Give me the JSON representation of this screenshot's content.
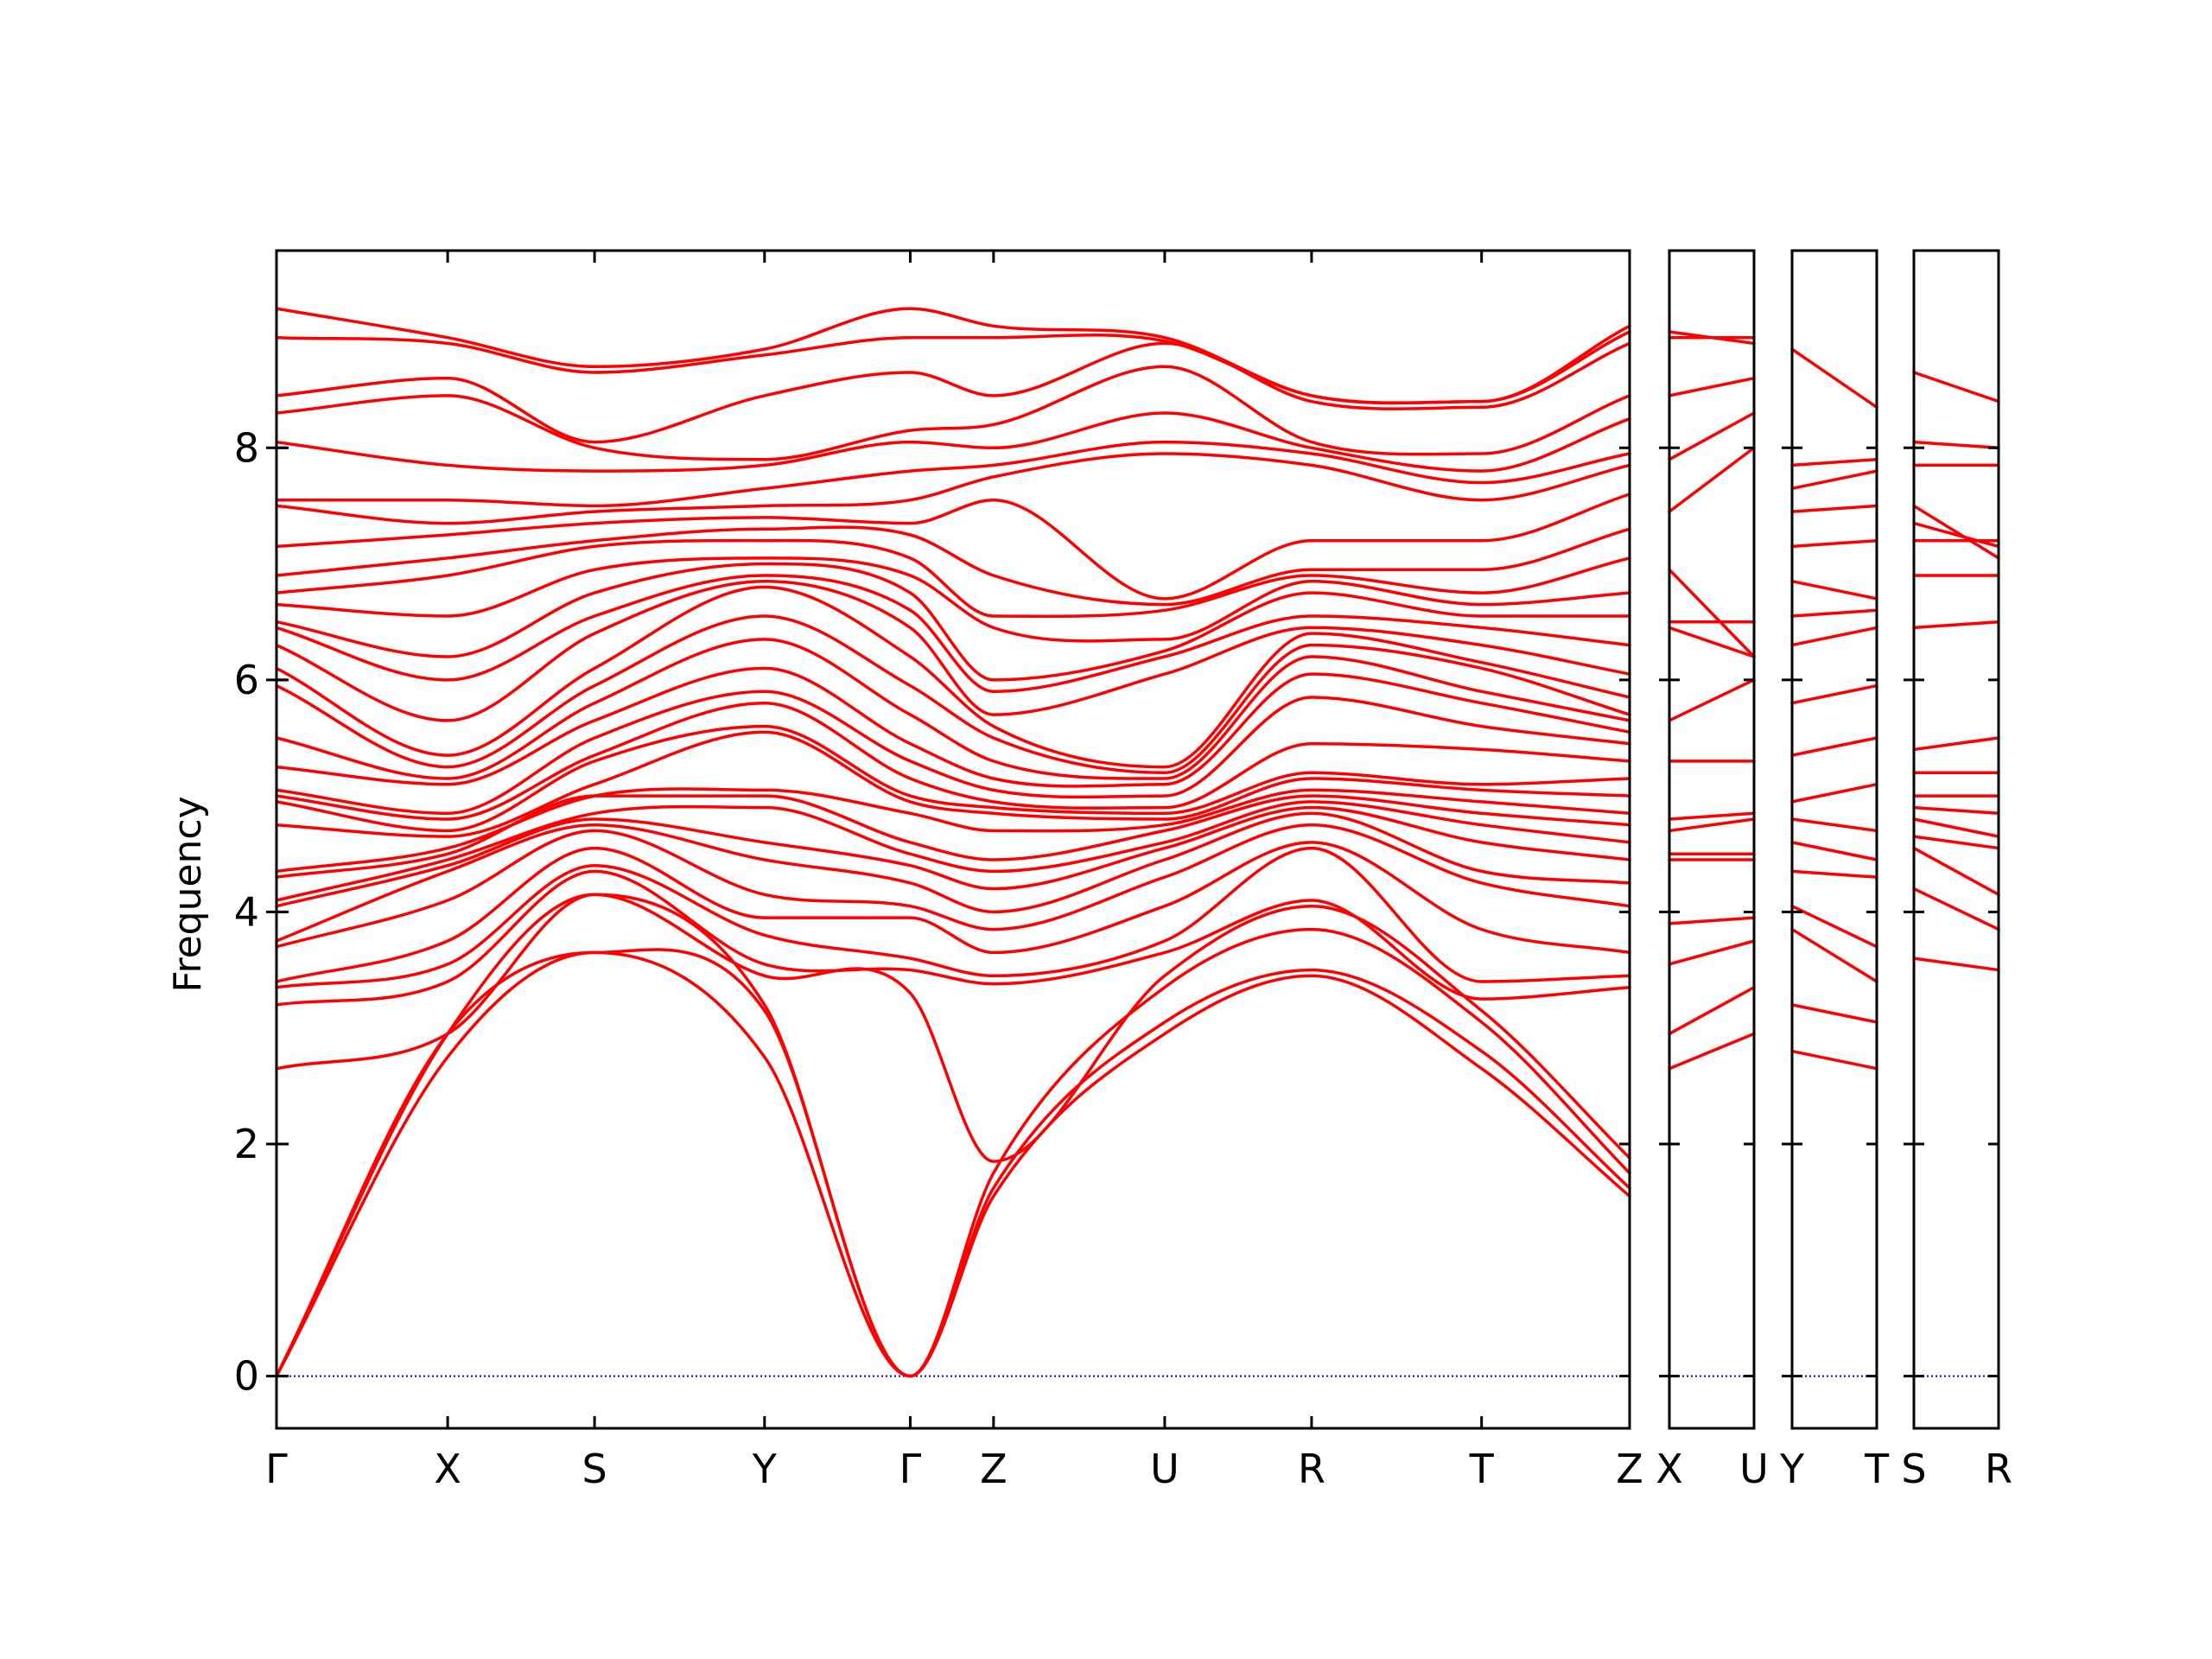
{
  "chart_data": {
    "type": "line",
    "title": "",
    "xlabel": "",
    "ylabel": "Frequency",
    "ylim": [
      -0.45,
      9.7
    ],
    "yticks": [
      0,
      2,
      4,
      6,
      8
    ],
    "ytick_labels": [
      "0",
      "2",
      "4",
      "6",
      "8"
    ],
    "grid": false,
    "line_color": "#ff0000",
    "zero_line_color": "#0000cc",
    "segments": [
      {
        "k": [
          0,
          1.48,
          2.75,
          4.22,
          5.48,
          6.2,
          7.68,
          8.95,
          10.42,
          11.7
        ]
      },
      {
        "k": [
          0,
          0.72
        ]
      },
      {
        "k": [
          0,
          0.72
        ]
      },
      {
        "k": [
          0,
          0.72
        ]
      }
    ],
    "tick_labels": [
      [
        "Γ",
        "X",
        "S",
        "Y",
        "Γ",
        "Z",
        "U",
        "R",
        "T",
        "Z"
      ],
      [
        "X",
        "U"
      ],
      [
        "Y",
        "T"
      ],
      [
        "S",
        "R"
      ]
    ],
    "bands_main": [
      [
        0,
        2.95,
        3.65,
        2.75,
        0,
        1.55,
        2.95,
        3.45,
        2.65,
        1.55
      ],
      [
        0,
        2.75,
        3.65,
        3.15,
        0,
        1.62,
        3.05,
        3.5,
        2.8,
        1.62
      ],
      [
        0,
        2.95,
        4.15,
        3.2,
        0,
        1.75,
        3.35,
        3.85,
        3.05,
        1.75
      ],
      [
        2.65,
        2.95,
        4.15,
        3.45,
        3.3,
        1.85,
        3.45,
        4.05,
        3.15,
        1.88
      ],
      [
        3.2,
        3.4,
        4.35,
        3.55,
        3.5,
        3.38,
        3.65,
        4.1,
        3.25,
        3.35
      ],
      [
        3.35,
        3.55,
        4.4,
        3.8,
        3.6,
        3.45,
        3.75,
        4.55,
        3.4,
        3.45
      ],
      [
        3.4,
        3.75,
        4.55,
        3.95,
        3.95,
        3.65,
        4.05,
        4.6,
        3.85,
        3.65
      ],
      [
        3.7,
        4.1,
        4.7,
        4.15,
        4.05,
        3.85,
        4.3,
        4.75,
        4.25,
        4.05
      ],
      [
        3.75,
        4.35,
        4.75,
        4.45,
        4.25,
        4.0,
        4.45,
        4.85,
        4.35,
        4.25
      ],
      [
        4.05,
        4.4,
        4.8,
        4.6,
        4.4,
        4.2,
        4.55,
        4.9,
        4.6,
        4.45
      ],
      [
        4.1,
        4.45,
        4.85,
        4.9,
        4.5,
        4.35,
        4.6,
        4.95,
        4.75,
        4.6
      ],
      [
        4.3,
        4.5,
        5.0,
        5.0,
        4.6,
        4.45,
        4.7,
        5.0,
        4.85,
        4.75
      ],
      [
        4.35,
        4.55,
        5.0,
        5.05,
        4.85,
        4.7,
        4.75,
        5.05,
        4.95,
        4.85
      ],
      [
        4.75,
        4.65,
        5.1,
        5.55,
        4.95,
        4.85,
        4.8,
        5.15,
        5.05,
        5.0
      ],
      [
        4.95,
        4.7,
        5.3,
        5.6,
        5.0,
        4.9,
        4.85,
        5.2,
        5.1,
        5.15
      ],
      [
        5.0,
        4.8,
        5.35,
        5.8,
        5.15,
        4.95,
        4.9,
        5.45,
        5.4,
        5.3
      ],
      [
        5.05,
        4.85,
        5.5,
        5.9,
        5.3,
        5.05,
        5.0,
        5.85,
        5.6,
        5.45
      ],
      [
        5.25,
        5.1,
        5.65,
        6.1,
        5.45,
        5.15,
        5.1,
        6.05,
        5.8,
        5.55
      ],
      [
        5.5,
        5.15,
        5.8,
        6.35,
        5.7,
        5.3,
        5.15,
        6.2,
        5.9,
        5.65
      ],
      [
        5.95,
        5.25,
        5.95,
        6.55,
        5.95,
        5.5,
        5.2,
        6.3,
        6.1,
        5.7
      ],
      [
        6.1,
        5.35,
        6.1,
        6.8,
        6.2,
        5.6,
        5.25,
        6.4,
        6.15,
        5.85
      ],
      [
        6.3,
        5.65,
        6.4,
        6.85,
        6.45,
        5.7,
        6.05,
        6.45,
        6.3,
        6.05
      ],
      [
        6.45,
        6.0,
        6.55,
        6.9,
        6.6,
        5.9,
        6.2,
        6.55,
        6.45,
        6.3
      ],
      [
        6.5,
        6.2,
        6.75,
        7.0,
        6.75,
        6.0,
        6.25,
        6.75,
        6.55,
        6.55
      ],
      [
        6.65,
        6.55,
        6.95,
        7.05,
        6.9,
        6.45,
        6.35,
        6.85,
        6.65,
        6.75
      ],
      [
        6.75,
        6.9,
        7.15,
        7.2,
        7.05,
        6.55,
        6.6,
        6.9,
        6.75,
        7.05
      ],
      [
        6.9,
        7.05,
        7.2,
        7.3,
        7.25,
        6.9,
        6.65,
        6.95,
        6.95,
        7.3
      ],
      [
        7.15,
        7.25,
        7.35,
        7.4,
        7.35,
        7.55,
        6.7,
        7.2,
        7.2,
        7.6
      ],
      [
        7.5,
        7.35,
        7.45,
        7.5,
        7.55,
        7.75,
        7.95,
        7.85,
        7.55,
        7.85
      ],
      [
        7.55,
        7.55,
        7.5,
        7.65,
        7.8,
        7.85,
        8.05,
        7.95,
        7.7,
        7.95
      ],
      [
        8.05,
        7.85,
        7.8,
        7.85,
        8.05,
        8.0,
        8.3,
        8.0,
        7.8,
        8.25
      ],
      [
        8.3,
        8.45,
        8.0,
        7.9,
        8.15,
        8.2,
        8.7,
        8.05,
        7.95,
        8.45
      ],
      [
        8.45,
        8.6,
        8.05,
        8.45,
        8.65,
        8.45,
        8.9,
        8.4,
        8.35,
        8.9
      ],
      [
        8.95,
        8.9,
        8.65,
        8.8,
        8.95,
        8.95,
        8.92,
        8.45,
        8.4,
        9.0
      ],
      [
        9.2,
        8.95,
        8.7,
        8.85,
        9.2,
        9.05,
        8.95,
        8.45,
        8.4,
        9.05
      ]
    ],
    "bands_panels": [
      [
        [
          2.65,
          2.95
        ],
        [
          2.95,
          3.35
        ],
        [
          3.55,
          3.75
        ],
        [
          3.9,
          3.95
        ],
        [
          4.45,
          4.45
        ],
        [
          4.5,
          4.5
        ],
        [
          4.7,
          4.8
        ],
        [
          4.8,
          4.85
        ],
        [
          5.3,
          5.3
        ],
        [
          5.65,
          6.0
        ],
        [
          6.45,
          6.2
        ],
        [
          6.5,
          6.5
        ],
        [
          6.95,
          6.2
        ],
        [
          7.45,
          8.0
        ],
        [
          7.9,
          8.3
        ],
        [
          8.45,
          8.6
        ],
        [
          8.95,
          8.95
        ],
        [
          9.0,
          8.9
        ]
      ],
      [
        [
          2.8,
          2.65
        ],
        [
          3.2,
          3.05
        ],
        [
          3.85,
          3.4
        ],
        [
          4.05,
          3.7
        ],
        [
          4.35,
          4.3
        ],
        [
          4.6,
          4.45
        ],
        [
          4.8,
          4.7
        ],
        [
          4.95,
          5.1
        ],
        [
          5.35,
          5.5
        ],
        [
          5.8,
          5.95
        ],
        [
          6.3,
          6.45
        ],
        [
          6.55,
          6.6
        ],
        [
          6.85,
          6.7
        ],
        [
          7.15,
          7.2
        ],
        [
          7.45,
          7.5
        ],
        [
          7.65,
          7.8
        ],
        [
          7.85,
          7.9
        ],
        [
          8.85,
          8.35
        ]
      ],
      [
        [
          3.6,
          3.5
        ],
        [
          4.2,
          3.85
        ],
        [
          4.55,
          4.15
        ],
        [
          4.65,
          4.55
        ],
        [
          4.8,
          4.65
        ],
        [
          4.9,
          4.85
        ],
        [
          5.0,
          5.0
        ],
        [
          5.2,
          5.2
        ],
        [
          5.4,
          5.5
        ],
        [
          6.45,
          6.5
        ],
        [
          6.9,
          6.9
        ],
        [
          7.2,
          7.2
        ],
        [
          7.35,
          7.15
        ],
        [
          7.5,
          7.05
        ],
        [
          7.85,
          7.85
        ],
        [
          8.05,
          8.0
        ],
        [
          8.65,
          8.4
        ]
      ]
    ]
  }
}
